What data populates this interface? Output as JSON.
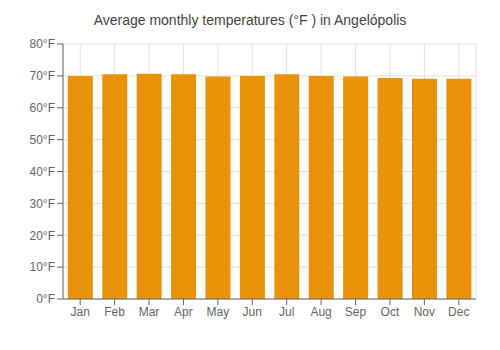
{
  "chart_data": {
    "type": "bar",
    "title": "Average monthly temperatures (°F ) in Angelópolis",
    "categories": [
      "Jan",
      "Feb",
      "Mar",
      "Apr",
      "May",
      "Jun",
      "Jul",
      "Aug",
      "Sep",
      "Oct",
      "Nov",
      "Dec"
    ],
    "values": [
      70.0,
      70.5,
      70.7,
      70.5,
      69.8,
      70.0,
      70.5,
      70.0,
      69.8,
      69.3,
      69.1,
      69.1
    ],
    "color": "#E8920A",
    "ylim": [
      0,
      80
    ],
    "yticks": [
      {
        "value": 0,
        "label": "0°F"
      },
      {
        "value": 10,
        "label": "10°F"
      },
      {
        "value": 20,
        "label": "20°F"
      },
      {
        "value": 30,
        "label": "30°F"
      },
      {
        "value": 40,
        "label": "40°F"
      },
      {
        "value": 50,
        "label": "50°F"
      },
      {
        "value": 60,
        "label": "60°F"
      },
      {
        "value": 70,
        "label": "70°F"
      },
      {
        "value": 80,
        "label": "80°F"
      }
    ],
    "grid": true
  }
}
